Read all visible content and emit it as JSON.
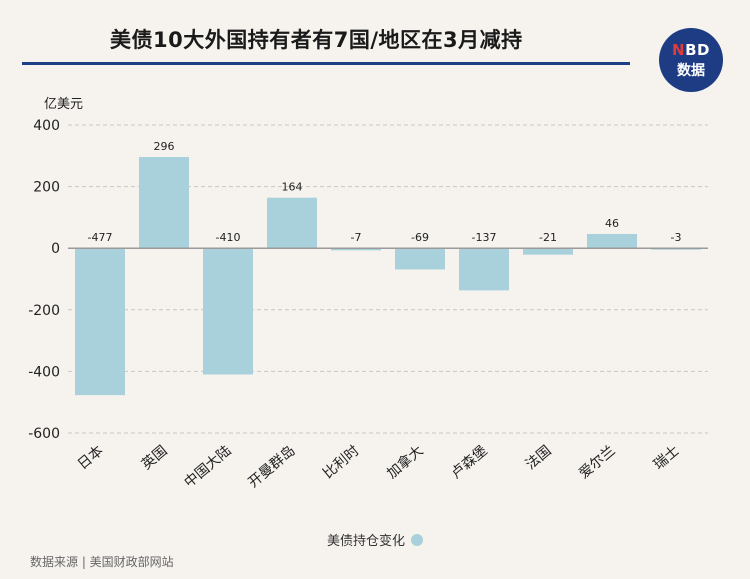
{
  "title": "美债10大外国持有者有7国/地区在3月减持",
  "logo": {
    "line1_n": "N",
    "line1_rest": "BD",
    "line2": "数据"
  },
  "source": "数据来源 | 美国财政部网站",
  "colors": {
    "bar": "#a8d1dc",
    "title_line": "#1e3f86",
    "logo_bg": "#1d3c83",
    "accent": "#e33b3b"
  },
  "chart_data": {
    "type": "bar",
    "ylabel": "亿美元",
    "ylim": [
      -600,
      400
    ],
    "yticks": [
      400,
      200,
      0,
      -200,
      -400,
      -600
    ],
    "grid": true,
    "legend_position": "bottom",
    "categories": [
      "日本",
      "英国",
      "中国大陆",
      "开曼群岛",
      "比利时",
      "加拿大",
      "卢森堡",
      "法国",
      "爱尔兰",
      "瑞士"
    ],
    "series": [
      {
        "name": "美债持仓变化",
        "values": [
          -477,
          296,
          -410,
          164,
          -7,
          -69,
          -137,
          -21,
          46,
          -3
        ]
      }
    ]
  }
}
